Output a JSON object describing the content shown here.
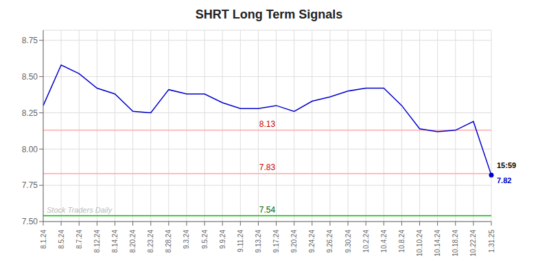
{
  "chart_data": {
    "type": "line",
    "title": "SHRT Long Term Signals",
    "categories": [
      "8.1.24",
      "8.5.24",
      "8.7.24",
      "8.12.24",
      "8.14.24",
      "8.20.24",
      "8.23.24",
      "8.28.24",
      "9.3.24",
      "9.5.24",
      "9.9.24",
      "9.11.24",
      "9.13.24",
      "9.17.24",
      "9.20.24",
      "9.24.24",
      "9.26.24",
      "9.30.24",
      "10.2.24",
      "10.4.24",
      "10.8.24",
      "10.10.24",
      "10.14.24",
      "10.18.24",
      "10.22.24",
      "1.31.25"
    ],
    "values": [
      8.3,
      8.58,
      8.52,
      8.42,
      8.38,
      8.26,
      8.25,
      8.41,
      8.38,
      8.38,
      8.32,
      8.28,
      8.28,
      8.3,
      8.26,
      8.33,
      8.36,
      8.4,
      8.42,
      8.42,
      8.3,
      8.14,
      8.12,
      8.13,
      8.19,
      7.82
    ],
    "color": "#0000cc",
    "ylim": [
      7.5,
      8.82
    ],
    "yticks": [
      {
        "value": 7.5,
        "label": "7.50"
      },
      7.75,
      {
        "value": 8.0,
        "label": "8.00"
      },
      8.25,
      {
        "value": 8.5,
        "label": "8.50"
      },
      8.75
    ],
    "grid": true,
    "hlines": [
      {
        "value": 8.13,
        "label": "8.13",
        "color": "#ffaaaa",
        "label_color": "#cc0000"
      },
      {
        "value": 7.83,
        "label": "7.83",
        "color": "#ffaaaa",
        "label_color": "#cc0000"
      },
      {
        "value": 7.54,
        "label": "7.54",
        "color": "#00bb00",
        "label_color": "#006600"
      }
    ],
    "annotations": [
      {
        "text": "15:59",
        "x": "1.31.25",
        "y": 7.82
      },
      {
        "text": "7.82",
        "x": "1.31.25",
        "y": 7.82,
        "color": "#0000cc"
      }
    ],
    "watermark": "Stock Traders Daily"
  }
}
